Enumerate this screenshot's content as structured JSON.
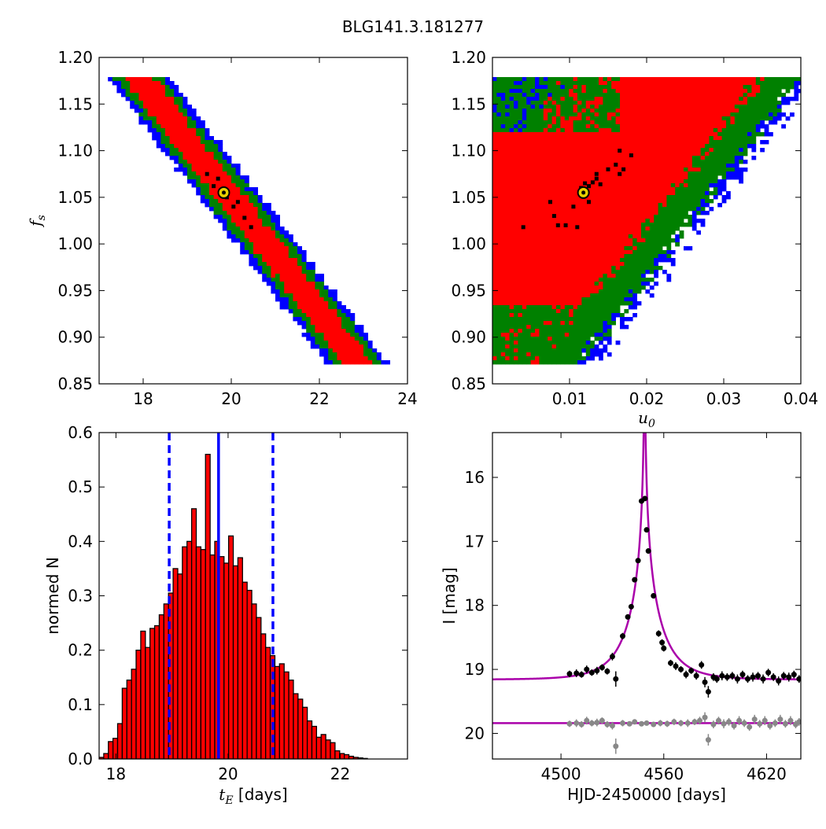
{
  "figure": {
    "title": "BLG141.3.181277"
  },
  "colors": {
    "sigma1": "#ff0000",
    "sigma2": "#008000",
    "sigma3": "#0000ff",
    "best_samples": "#000000",
    "best_fit_marker": "#e8d000",
    "hist_bar": "#ff0000",
    "hist_line": "#0000ff",
    "model_curve": "#aa00aa",
    "data_main": "#000000",
    "data_residual": "#888888"
  },
  "chart_data": [
    {
      "id": "tE-fs",
      "type": "heatmap",
      "xlabel": "",
      "ylabel_symbol": "f",
      "ylabel_sub": "s",
      "xlim": [
        17,
        24
      ],
      "ylim": [
        0.85,
        1.2
      ],
      "xticks": [
        "18",
        "20",
        "22",
        "24"
      ],
      "xtick_values": [
        18,
        20,
        22,
        24
      ],
      "yticks": [
        "0.85",
        "0.90",
        "0.95",
        "1.00",
        "1.05",
        "1.10",
        "1.15",
        "1.20"
      ],
      "ytick_values": [
        0.85,
        0.9,
        0.95,
        1.0,
        1.05,
        1.1,
        1.15,
        1.2
      ],
      "best_fit": {
        "x": 19.83,
        "y": 1.055
      },
      "band": {
        "x_at_top": 17.85,
        "y_top": 1.18,
        "x_at_bottom": 22.65,
        "y_bottom": 0.885,
        "half_width_1sigma": 0.35,
        "half_width_2sigma": 0.55,
        "half_width_3sigma": 0.7
      },
      "best_samples": [
        [
          19.45,
          1.075
        ],
        [
          19.6,
          1.062
        ],
        [
          19.9,
          1.05
        ],
        [
          20.05,
          1.04
        ],
        [
          20.3,
          1.028
        ],
        [
          20.45,
          1.018
        ],
        [
          19.7,
          1.07
        ],
        [
          20.15,
          1.045
        ]
      ]
    },
    {
      "id": "u0-fs",
      "type": "heatmap",
      "xlabel_symbol": "u",
      "xlabel_sub": "0",
      "ylabel": "",
      "xlim": [
        0.0,
        0.04
      ],
      "ylim": [
        0.85,
        1.2
      ],
      "xticks": [
        "0.01",
        "0.02",
        "0.03",
        "0.04"
      ],
      "xtick_values": [
        0.01,
        0.02,
        0.03,
        0.04
      ],
      "yticks": [
        "0.85",
        "0.90",
        "0.95",
        "1.00",
        "1.05",
        "1.10",
        "1.15",
        "1.20"
      ],
      "ytick_values": [
        0.85,
        0.9,
        0.95,
        1.0,
        1.05,
        1.1,
        1.15,
        1.2
      ],
      "best_fit": {
        "x": 0.0118,
        "y": 1.055
      },
      "best_samples": [
        [
          0.0115,
          1.06
        ],
        [
          0.012,
          1.065
        ],
        [
          0.0125,
          1.062
        ],
        [
          0.013,
          1.066
        ],
        [
          0.0135,
          1.07
        ],
        [
          0.014,
          1.064
        ],
        [
          0.015,
          1.08
        ],
        [
          0.016,
          1.085
        ],
        [
          0.0165,
          1.075
        ],
        [
          0.017,
          1.08
        ],
        [
          0.0105,
          1.04
        ],
        [
          0.0095,
          1.02
        ],
        [
          0.008,
          1.03
        ],
        [
          0.0075,
          1.045
        ],
        [
          0.0085,
          1.02
        ],
        [
          0.011,
          1.018
        ],
        [
          0.004,
          1.018
        ],
        [
          0.0165,
          1.1
        ],
        [
          0.018,
          1.095
        ],
        [
          0.0135,
          1.075
        ],
        [
          0.0125,
          1.045
        ]
      ]
    },
    {
      "id": "tE-histogram",
      "type": "bar",
      "xlabel_symbol": "t",
      "xlabel_sub": "E",
      "xlabel_unit": "[days]",
      "ylabel": "normed N",
      "xlim": [
        17.7,
        23.2
      ],
      "ylim": [
        0.0,
        0.6
      ],
      "xticks": [
        "18",
        "20",
        "22"
      ],
      "xtick_values": [
        18,
        20,
        22
      ],
      "yticks": [
        "0.0",
        "0.1",
        "0.2",
        "0.3",
        "0.4",
        "0.5",
        "0.6"
      ],
      "ytick_values": [
        0.0,
        0.1,
        0.2,
        0.3,
        0.4,
        0.5,
        0.6
      ],
      "bin_start": 17.7,
      "bin_width": 0.0825,
      "values": [
        0.003,
        0.01,
        0.032,
        0.038,
        0.065,
        0.13,
        0.145,
        0.165,
        0.2,
        0.235,
        0.205,
        0.24,
        0.245,
        0.265,
        0.285,
        0.305,
        0.35,
        0.34,
        0.39,
        0.4,
        0.46,
        0.39,
        0.385,
        0.56,
        0.375,
        0.4,
        0.372,
        0.36,
        0.41,
        0.355,
        0.37,
        0.325,
        0.31,
        0.285,
        0.26,
        0.23,
        0.205,
        0.19,
        0.17,
        0.175,
        0.16,
        0.145,
        0.12,
        0.11,
        0.095,
        0.07,
        0.06,
        0.04,
        0.045,
        0.035,
        0.03,
        0.015,
        0.01,
        0.008,
        0.005,
        0.003,
        0.002,
        0.001,
        0.0,
        0.0,
        0.0,
        0.0,
        0.0,
        0.0,
        0.0,
        0.0
      ],
      "median": 19.83,
      "lower": 18.95,
      "upper": 20.8
    },
    {
      "id": "lightcurve",
      "type": "scatter",
      "xlabel": "HJD-2450000 [days]",
      "ylabel": "I [mag]",
      "xlim": [
        4460,
        4640
      ],
      "ylim": [
        20.4,
        15.3
      ],
      "xticks": [
        "4500",
        "4560",
        "4620"
      ],
      "xtick_values": [
        4500,
        4560,
        4620
      ],
      "yticks": [
        "16",
        "17",
        "18",
        "19",
        "20"
      ],
      "ytick_values": [
        16,
        17,
        18,
        19,
        20
      ],
      "model": {
        "t0": 4548.8,
        "tE": 19.83,
        "u0": 0.0118,
        "baseline": 19.16,
        "fs": 1.055
      },
      "residual_baseline": 19.84,
      "observations": [
        [
          4505,
          19.07,
          0.05
        ],
        [
          4509,
          19.06,
          0.06
        ],
        [
          4512,
          19.08,
          0.05
        ],
        [
          4515,
          19.0,
          0.06
        ],
        [
          4518,
          19.05,
          0.05
        ],
        [
          4521,
          19.02,
          0.06
        ],
        [
          4524,
          18.97,
          0.05
        ],
        [
          4527,
          19.03,
          0.05
        ],
        [
          4530,
          18.8,
          0.06
        ],
        [
          4532,
          19.15,
          0.12
        ],
        [
          4536,
          18.48,
          0.05
        ],
        [
          4539,
          18.18,
          0.04
        ],
        [
          4541,
          18.02,
          0.04
        ],
        [
          4543,
          17.6,
          0.04
        ],
        [
          4545,
          17.3,
          0.03
        ],
        [
          4547,
          16.37,
          0.03
        ],
        [
          4549,
          16.33,
          0.03
        ],
        [
          4550,
          16.82,
          0.03
        ],
        [
          4551,
          17.15,
          0.04
        ],
        [
          4554,
          17.85,
          0.04
        ],
        [
          4557,
          18.44,
          0.05
        ],
        [
          4559,
          18.58,
          0.05
        ],
        [
          4560,
          18.67,
          0.05
        ],
        [
          4564,
          18.9,
          0.05
        ],
        [
          4567,
          18.95,
          0.06
        ],
        [
          4570,
          19.0,
          0.05
        ],
        [
          4573,
          19.08,
          0.06
        ],
        [
          4576,
          19.02,
          0.05
        ],
        [
          4579,
          19.1,
          0.06
        ],
        [
          4582,
          18.93,
          0.06
        ],
        [
          4584,
          19.2,
          0.08
        ],
        [
          4586,
          19.35,
          0.09
        ],
        [
          4589,
          19.12,
          0.06
        ],
        [
          4591,
          19.15,
          0.06
        ],
        [
          4594,
          19.1,
          0.07
        ],
        [
          4597,
          19.12,
          0.06
        ],
        [
          4600,
          19.1,
          0.06
        ],
        [
          4603,
          19.15,
          0.07
        ],
        [
          4606,
          19.08,
          0.06
        ],
        [
          4609,
          19.15,
          0.06
        ],
        [
          4612,
          19.12,
          0.07
        ],
        [
          4615,
          19.1,
          0.06
        ],
        [
          4618,
          19.15,
          0.07
        ],
        [
          4621,
          19.05,
          0.06
        ],
        [
          4624,
          19.12,
          0.06
        ],
        [
          4627,
          19.18,
          0.07
        ],
        [
          4630,
          19.1,
          0.06
        ],
        [
          4633,
          19.12,
          0.07
        ],
        [
          4636,
          19.08,
          0.06
        ],
        [
          4639,
          19.15,
          0.06
        ]
      ],
      "residuals": [
        [
          4505,
          19.85,
          0.05
        ],
        [
          4509,
          19.84,
          0.06
        ],
        [
          4512,
          19.86,
          0.05
        ],
        [
          4515,
          19.8,
          0.06
        ],
        [
          4518,
          19.84,
          0.05
        ],
        [
          4521,
          19.83,
          0.06
        ],
        [
          4524,
          19.8,
          0.05
        ],
        [
          4527,
          19.86,
          0.05
        ],
        [
          4530,
          19.88,
          0.06
        ],
        [
          4532,
          20.2,
          0.12
        ],
        [
          4536,
          19.84,
          0.05
        ],
        [
          4540,
          19.85,
          0.04
        ],
        [
          4543,
          19.82,
          0.04
        ],
        [
          4547,
          19.85,
          0.03
        ],
        [
          4550,
          19.84,
          0.03
        ],
        [
          4554,
          19.86,
          0.04
        ],
        [
          4558,
          19.84,
          0.05
        ],
        [
          4562,
          19.85,
          0.05
        ],
        [
          4566,
          19.82,
          0.05
        ],
        [
          4570,
          19.84,
          0.05
        ],
        [
          4574,
          19.84,
          0.06
        ],
        [
          4578,
          19.82,
          0.05
        ],
        [
          4581,
          19.8,
          0.06
        ],
        [
          4584,
          19.75,
          0.08
        ],
        [
          4586,
          20.1,
          0.09
        ],
        [
          4589,
          19.86,
          0.06
        ],
        [
          4592,
          19.8,
          0.06
        ],
        [
          4595,
          19.85,
          0.07
        ],
        [
          4598,
          19.82,
          0.06
        ],
        [
          4601,
          19.88,
          0.06
        ],
        [
          4604,
          19.8,
          0.07
        ],
        [
          4607,
          19.84,
          0.06
        ],
        [
          4610,
          19.9,
          0.06
        ],
        [
          4613,
          19.78,
          0.07
        ],
        [
          4616,
          19.85,
          0.06
        ],
        [
          4619,
          19.8,
          0.07
        ],
        [
          4622,
          19.88,
          0.06
        ],
        [
          4625,
          19.84,
          0.06
        ],
        [
          4628,
          19.78,
          0.07
        ],
        [
          4631,
          19.85,
          0.06
        ],
        [
          4634,
          19.8,
          0.07
        ],
        [
          4637,
          19.86,
          0.06
        ],
        [
          4639,
          19.82,
          0.06
        ]
      ]
    }
  ]
}
